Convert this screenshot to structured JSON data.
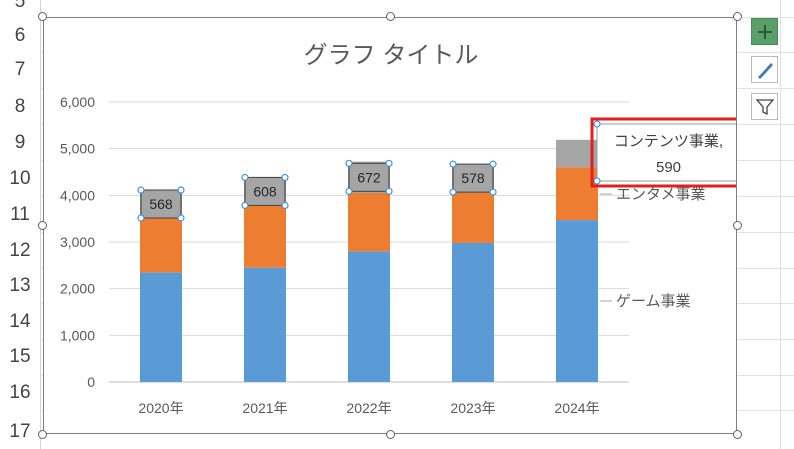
{
  "row_numbers": [
    "5",
    "6",
    "7",
    "8",
    "9",
    "10",
    "11",
    "12",
    "13",
    "14",
    "15",
    "16",
    "17"
  ],
  "chart_title": "グラフ タイトル",
  "colors": {
    "game": "#5b9bd5",
    "entame": "#ed7d31",
    "contents": "#a5a5a5",
    "selection_box": "#e0201e",
    "handle": "#4a90d9",
    "plus_button": "#5a9e6a"
  },
  "icons": {
    "chart_elements": "plus-icon",
    "chart_styles": "brush-icon",
    "chart_filters": "filter-icon"
  },
  "selected_label": {
    "line1": "コンテンツ事業,",
    "line2": "590"
  },
  "series_labels": {
    "entame": "エンタメ事業",
    "game": "ゲーム事業"
  },
  "chart_data": {
    "type": "bar",
    "stacked": true,
    "title": "グラフ タイトル",
    "categories": [
      "2020年",
      "2021年",
      "2022年",
      "2023年",
      "2024年"
    ],
    "series": [
      {
        "name": "ゲーム事業",
        "values": [
          2350,
          2450,
          2800,
          2980,
          3470
        ]
      },
      {
        "name": "エンタメ事業",
        "values": [
          1180,
          1330,
          1250,
          1100,
          1130
        ]
      },
      {
        "name": "コンテンツ事業",
        "values": [
          568,
          608,
          672,
          578,
          590
        ]
      }
    ],
    "data_labels": [
      "568",
      "608",
      "672",
      "578"
    ],
    "ylim": [
      0,
      6000
    ],
    "yticks": [
      "0",
      "1,000",
      "2,000",
      "3,000",
      "4,000",
      "5,000",
      "6,000"
    ],
    "grid": true
  }
}
